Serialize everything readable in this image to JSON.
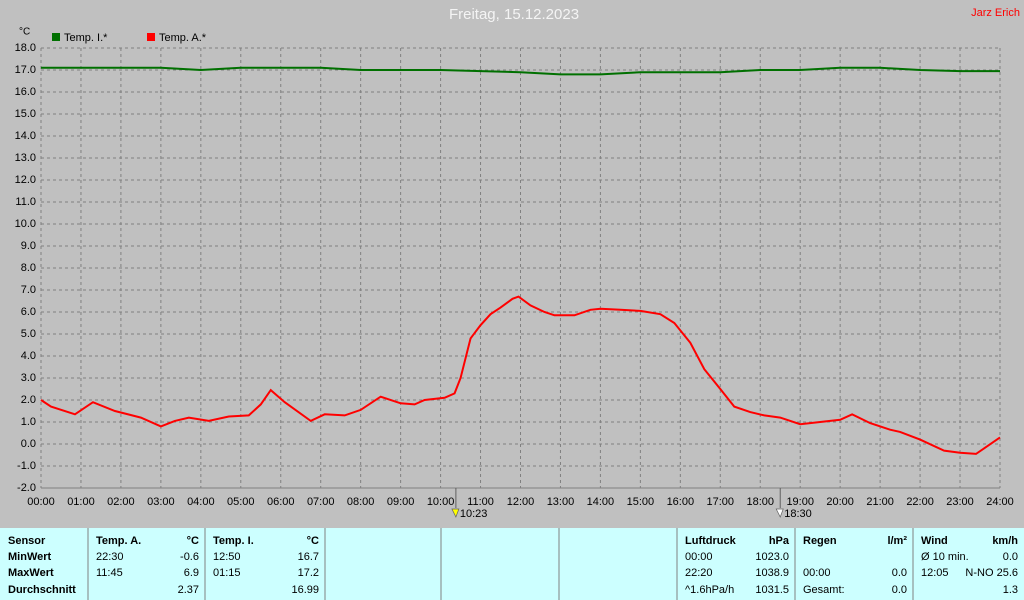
{
  "chart_data": {
    "type": "line",
    "title": "Freitag, 15.12.2023",
    "author": "Jarz Erich",
    "y_label": "°C",
    "grid": true,
    "series": [
      {
        "name": "Temp. I.*",
        "color": "#007000",
        "x": [
          0,
          1,
          2,
          3,
          4,
          5,
          6,
          7,
          8,
          9,
          10,
          11,
          12,
          13,
          14,
          15,
          16,
          17,
          18,
          19,
          20,
          21,
          22,
          23,
          24
        ],
        "values": [
          17.1,
          17.1,
          17.1,
          17.1,
          17.0,
          17.1,
          17.1,
          17.1,
          17.0,
          17.0,
          17.0,
          16.95,
          16.9,
          16.8,
          16.8,
          16.9,
          16.9,
          16.9,
          17.0,
          17.0,
          17.1,
          17.1,
          17.0,
          16.95,
          16.95
        ]
      },
      {
        "name": "Temp. A.*",
        "color": "#ff0000",
        "x": [
          0,
          0.25,
          0.85,
          1.3,
          1.85,
          2.5,
          3.0,
          3.35,
          3.7,
          4.2,
          4.7,
          5.2,
          5.5,
          5.75,
          6.1,
          6.75,
          7.1,
          7.6,
          8.0,
          8.5,
          9.0,
          9.35,
          9.6,
          10.1,
          10.35,
          10.5,
          10.75,
          11.0,
          11.25,
          11.5,
          11.8,
          11.95,
          12.25,
          12.6,
          12.85,
          13.35,
          13.75,
          14.0,
          14.5,
          15.0,
          15.5,
          15.85,
          16.25,
          16.6,
          17.0,
          17.35,
          17.75,
          18.1,
          18.5,
          19.0,
          19.5,
          20.0,
          20.3,
          20.75,
          21.25,
          21.5,
          22.0,
          22.6,
          23.0,
          23.4,
          23.6,
          24.0
        ],
        "values": [
          2.0,
          1.7,
          1.35,
          1.9,
          1.5,
          1.2,
          0.8,
          1.05,
          1.2,
          1.05,
          1.25,
          1.3,
          1.8,
          2.45,
          1.9,
          1.05,
          1.35,
          1.3,
          1.55,
          2.15,
          1.85,
          1.8,
          2.0,
          2.1,
          2.3,
          3.0,
          4.8,
          5.4,
          5.9,
          6.2,
          6.6,
          6.7,
          6.3,
          6.0,
          5.85,
          5.85,
          6.1,
          6.15,
          6.1,
          6.05,
          5.9,
          5.5,
          4.6,
          3.4,
          2.5,
          1.7,
          1.45,
          1.3,
          1.2,
          0.9,
          1.0,
          1.1,
          1.35,
          0.95,
          0.65,
          0.55,
          0.2,
          -0.3,
          -0.4,
          -0.45,
          -0.2,
          0.3
        ]
      }
    ],
    "xlim": [
      0,
      24
    ],
    "xticks": [
      {
        "value": 0,
        "label": "00:00"
      },
      {
        "value": 1,
        "label": "01:00"
      },
      {
        "value": 2,
        "label": "02:00"
      },
      {
        "value": 3,
        "label": "03:00"
      },
      {
        "value": 4,
        "label": "04:00"
      },
      {
        "value": 5,
        "label": "05:00"
      },
      {
        "value": 6,
        "label": "06:00"
      },
      {
        "value": 7,
        "label": "07:00"
      },
      {
        "value": 8,
        "label": "08:00"
      },
      {
        "value": 9,
        "label": "09:00"
      },
      {
        "value": 10,
        "label": "10:00"
      },
      {
        "value": 11,
        "label": "11:00"
      },
      {
        "value": 12,
        "label": "12:00"
      },
      {
        "value": 13,
        "label": "13:00"
      },
      {
        "value": 14,
        "label": "14:00"
      },
      {
        "value": 15,
        "label": "15:00"
      },
      {
        "value": 16,
        "label": "16:00"
      },
      {
        "value": 17,
        "label": "17:00"
      },
      {
        "value": 18,
        "label": "18:00"
      },
      {
        "value": 19,
        "label": "19:00"
      },
      {
        "value": 20,
        "label": "20:00"
      },
      {
        "value": 21,
        "label": "21:00"
      },
      {
        "value": 22,
        "label": "22:00"
      },
      {
        "value": 23,
        "label": "23:00"
      },
      {
        "value": 24,
        "label": "24:00"
      }
    ],
    "ylim": [
      -2,
      18
    ],
    "yticks": [
      {
        "value": 18,
        "label": "18.0"
      },
      {
        "value": 17,
        "label": "17.0"
      },
      {
        "value": 16,
        "label": "16.0"
      },
      {
        "value": 15,
        "label": "15.0"
      },
      {
        "value": 14,
        "label": "14.0"
      },
      {
        "value": 13,
        "label": "13.0"
      },
      {
        "value": 12,
        "label": "12.0"
      },
      {
        "value": 11,
        "label": "11.0"
      },
      {
        "value": 10,
        "label": "10.0"
      },
      {
        "value": 9,
        "label": "9.0"
      },
      {
        "value": 8,
        "label": "8.0"
      },
      {
        "value": 7,
        "label": "7.0"
      },
      {
        "value": 6,
        "label": "6.0"
      },
      {
        "value": 5,
        "label": "5.0"
      },
      {
        "value": 4,
        "label": "4.0"
      },
      {
        "value": 3,
        "label": "3.0"
      },
      {
        "value": 2,
        "label": "2.0"
      },
      {
        "value": 1,
        "label": "1.0"
      },
      {
        "value": 0,
        "label": "0.0"
      },
      {
        "value": -1,
        "label": "-1.0"
      },
      {
        "value": -2,
        "label": "-2.0"
      }
    ],
    "annotations": [
      {
        "x": 10.383,
        "label": "10:23"
      },
      {
        "x": 18.5,
        "label": "18:30"
      }
    ]
  },
  "table": {
    "sections": [
      {
        "header": [
          "Sensor"
        ],
        "rows": [
          [
            "MinWert"
          ],
          [
            "MaxWert"
          ],
          [
            "Durchschnitt"
          ]
        ]
      },
      {
        "header": [
          "Temp. A.",
          "°C"
        ],
        "rows": [
          [
            "22:30",
            "-0.6"
          ],
          [
            "11:45",
            "6.9"
          ],
          [
            "2.37"
          ]
        ]
      },
      {
        "header": [
          "Temp. I.",
          "°C"
        ],
        "rows": [
          [
            "12:50",
            "16.7"
          ],
          [
            "01:15",
            "17.2"
          ],
          [
            "16.99"
          ]
        ]
      },
      {
        "header": [],
        "rows": []
      },
      {
        "header": [],
        "rows": []
      },
      {
        "header": [],
        "rows": []
      },
      {
        "header": [
          "Luftdruck",
          "hPa"
        ],
        "rows": [
          [
            "00:00",
            "1023.0"
          ],
          [
            "22:20",
            "1038.9"
          ],
          [
            "^1.6hPa/h",
            "1031.5"
          ]
        ]
      },
      {
        "header": [
          "Regen",
          "l/m²"
        ],
        "rows": [
          [],
          [
            "00:00",
            "0.0"
          ],
          [
            "Gesamt:",
            "0.0"
          ]
        ]
      },
      {
        "header": [
          "Wind",
          "km/h"
        ],
        "rows": [
          [
            "Ø 10 min.",
            "0.0"
          ],
          [
            "12:05",
            "N-NO 25.6"
          ],
          [
            "1.3"
          ]
        ]
      }
    ]
  }
}
